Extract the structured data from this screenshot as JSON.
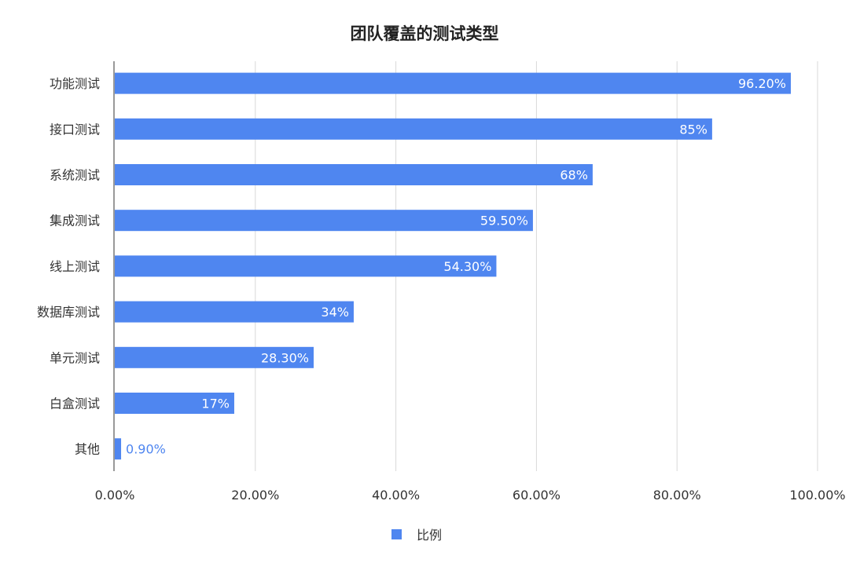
{
  "colors": {
    "bar": "#4F86F0",
    "grid": "#D9D9D9",
    "axis": "#333333",
    "label_inside": "#FFFFFF",
    "label_outside": "#4F86F0",
    "text": "#333333"
  },
  "chart_data": {
    "type": "bar",
    "orientation": "horizontal",
    "title": "团队覆盖的测试类型",
    "categories": [
      "功能测试",
      "接口测试",
      "系统测试",
      "集成测试",
      "线上测试",
      "数据库测试",
      "单元测试",
      "白盒测试",
      "其他"
    ],
    "series": [
      {
        "name": "比例",
        "values": [
          96.2,
          85,
          68,
          59.5,
          54.3,
          34,
          28.3,
          17,
          0.9
        ],
        "labels": [
          "96.20%",
          "85%",
          "68%",
          "59.50%",
          "54.30%",
          "34%",
          "28.30%",
          "17%",
          "0.90%"
        ]
      }
    ],
    "xlim": [
      0,
      100
    ],
    "xticks": [
      0,
      20,
      40,
      60,
      80,
      100
    ],
    "xtick_labels": [
      "0.00%",
      "20.00%",
      "40.00%",
      "60.00%",
      "80.00%",
      "100.00%"
    ],
    "grid": "vertical",
    "legend": "bottom-center"
  }
}
